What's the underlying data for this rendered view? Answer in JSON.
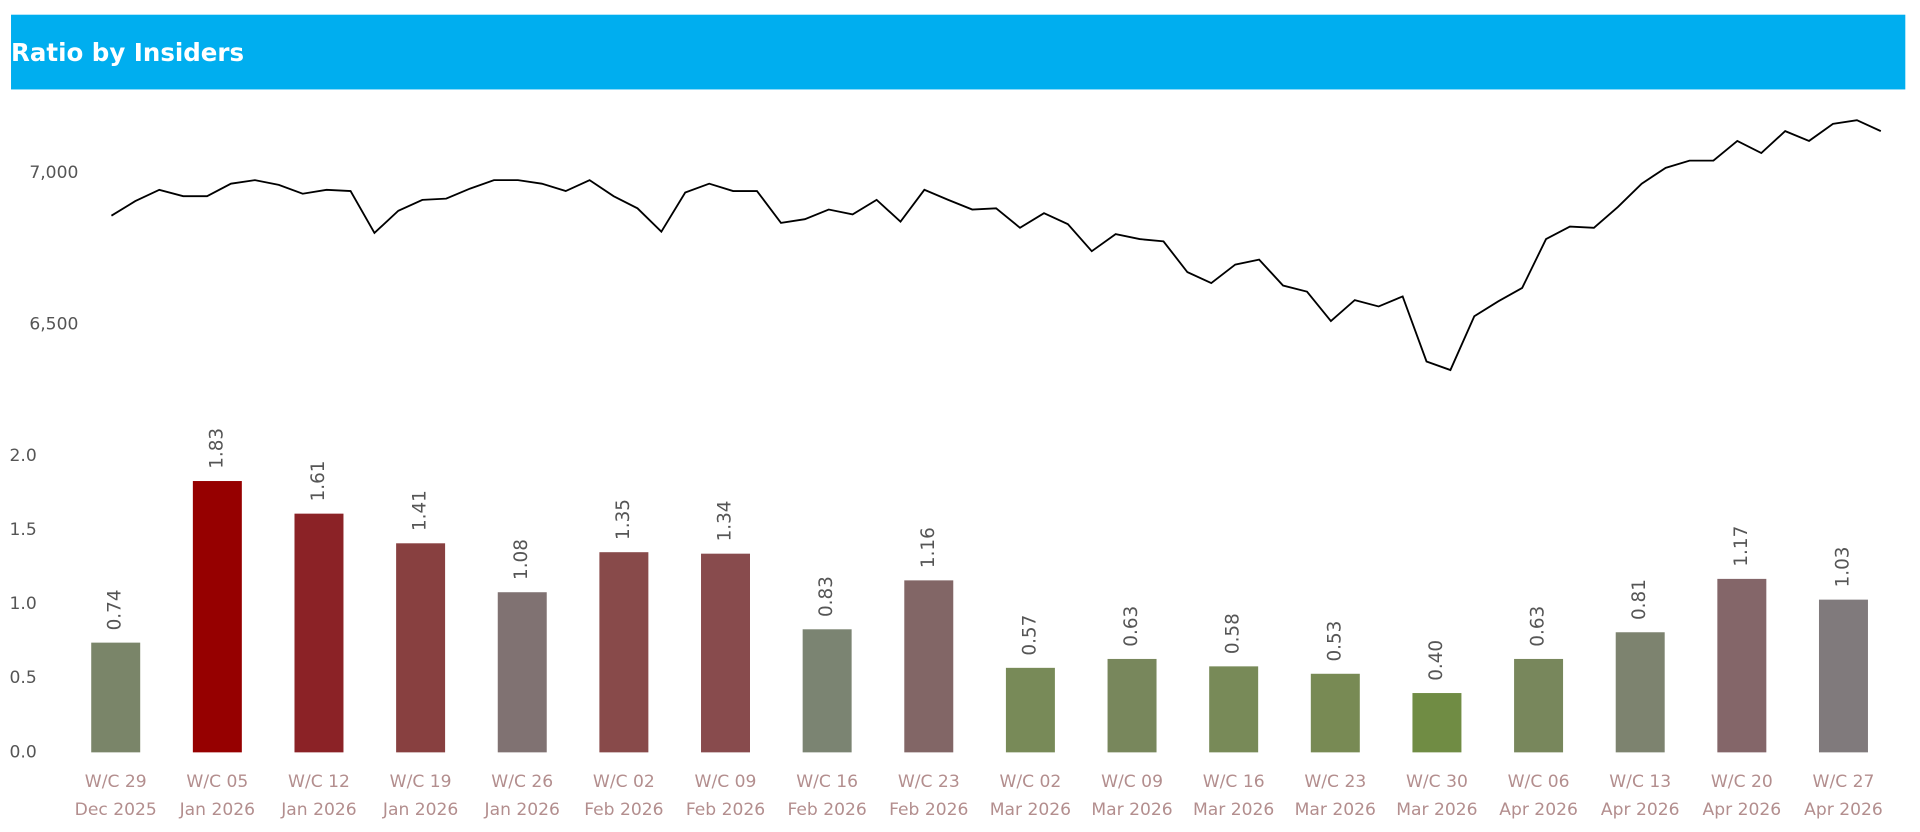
{
  "title": "Ratio by Insiders",
  "chart_data": [
    {
      "type": "line",
      "color": "#000000",
      "values": [
        6859,
        6907,
        6944,
        6923,
        6923,
        6964,
        6976,
        6960,
        6931,
        6944,
        6940,
        6802,
        6875,
        6911,
        6915,
        6948,
        6976,
        6976,
        6964,
        6940,
        6976,
        6923,
        6883,
        6806,
        6935,
        6964,
        6940,
        6940,
        6835,
        6847,
        6879,
        6863,
        6911,
        6839,
        6944,
        6911,
        6879,
        6883,
        6819,
        6867,
        6831,
        6742,
        6798,
        6782,
        6774,
        6673,
        6637,
        6698,
        6714,
        6629,
        6609,
        6512,
        6581,
        6560,
        6593,
        6379,
        6351,
        6528,
        6577,
        6621,
        6782,
        6823,
        6819,
        6887,
        6964,
        7016,
        7040,
        7040,
        7105,
        7065,
        7137,
        7105,
        7161,
        7173,
        7137
      ],
      "ylim": [
        6300,
        7200
      ],
      "yticks": [
        {
          "value": 6500,
          "label": "6,500"
        },
        {
          "value": 7000,
          "label": "7,000"
        }
      ]
    },
    {
      "type": "bar",
      "categories": [
        [
          "W/C 29",
          "Dec 2025"
        ],
        [
          "W/C 05",
          "Jan 2026"
        ],
        [
          "W/C 12",
          "Jan 2026"
        ],
        [
          "W/C 19",
          "Jan 2026"
        ],
        [
          "W/C 26",
          "Jan 2026"
        ],
        [
          "W/C 02",
          "Feb 2026"
        ],
        [
          "W/C 09",
          "Feb 2026"
        ],
        [
          "W/C 16",
          "Feb 2026"
        ],
        [
          "W/C 23",
          "Feb 2026"
        ],
        [
          "W/C 02",
          "Mar 2026"
        ],
        [
          "W/C 09",
          "Mar 2026"
        ],
        [
          "W/C 16",
          "Mar 2026"
        ],
        [
          "W/C 23",
          "Mar 2026"
        ],
        [
          "W/C 30",
          "Mar 2026"
        ],
        [
          "W/C 06",
          "Apr 2026"
        ],
        [
          "W/C 13",
          "Apr 2026"
        ],
        [
          "W/C 20",
          "Apr 2026"
        ],
        [
          "W/C 27",
          "Apr 2026"
        ]
      ],
      "values": [
        0.74,
        1.83,
        1.61,
        1.41,
        1.08,
        1.35,
        1.34,
        0.83,
        1.16,
        0.57,
        0.63,
        0.58,
        0.53,
        0.4,
        0.63,
        0.81,
        1.17,
        1.03
      ],
      "value_labels": [
        "0.74",
        "1.83",
        "1.61",
        "1.41",
        "1.08",
        "1.35",
        "1.34",
        "0.83",
        "1.16",
        "0.57",
        "0.63",
        "0.58",
        "0.53",
        "0.40",
        "0.63",
        "0.81",
        "1.17",
        "1.03"
      ],
      "colors": [
        "#7a8569",
        "#960000",
        "#8b2226",
        "#884040",
        "#807272",
        "#884a4a",
        "#884b4d",
        "#7b8472",
        "#826666",
        "#788a58",
        "#78875c",
        "#788a58",
        "#788a54",
        "#708c44",
        "#78875c",
        "#7d836f",
        "#846669",
        "#807a7c"
      ],
      "ylim": [
        0,
        2
      ],
      "yticks": [
        {
          "value": 0,
          "label": "0.0"
        },
        0.5,
        {
          "value": 1,
          "label": "1.0"
        },
        1.5,
        {
          "value": 2,
          "label": "2.0"
        }
      ]
    }
  ]
}
